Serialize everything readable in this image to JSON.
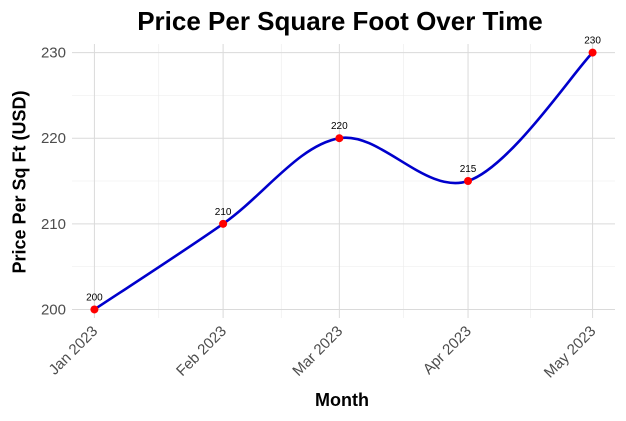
{
  "chart_data": {
    "type": "line",
    "title": "Price Per Square Foot Over Time",
    "xlabel": "Month",
    "ylabel": "Price Per Sq Ft (USD)",
    "categories": [
      "Jan 2023",
      "Feb 2023",
      "Mar 2023",
      "Apr 2023",
      "May 2023"
    ],
    "dates": [
      "2023-01-01",
      "2023-02-01",
      "2023-03-01",
      "2023-04-01",
      "2023-05-01"
    ],
    "values": [
      200,
      210,
      220,
      215,
      230
    ],
    "data_labels": [
      "200",
      "210",
      "220",
      "215",
      "230"
    ],
    "yticks": [
      200,
      210,
      220,
      230
    ],
    "ylim": [
      199,
      231
    ],
    "grid": true,
    "line_style": "smoothed",
    "colors": {
      "line": "#0000CC",
      "points": "#FF0000",
      "grid": "#DADADA",
      "tick_text": "#4D4D4D"
    }
  }
}
